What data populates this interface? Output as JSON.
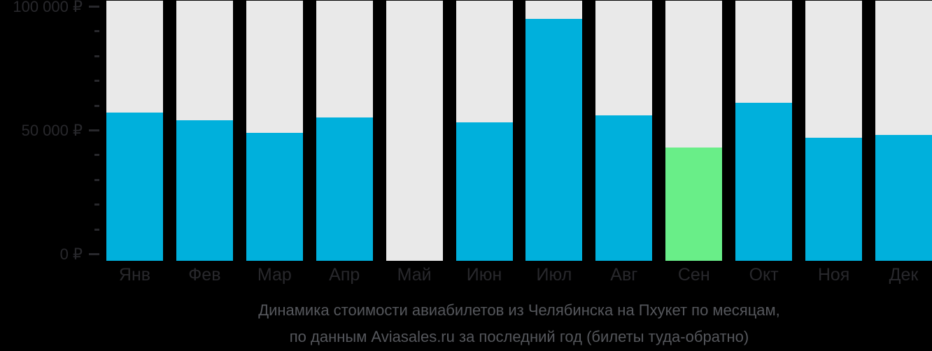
{
  "chart_data": {
    "type": "bar",
    "title": "Динамика стоимости авиабилетов из Челябинска на Пхукет по месяцам,",
    "subtitle": "по данным Aviasales.ru за последний год (билеты туда-обратно)",
    "categories": [
      "Янв",
      "Фев",
      "Мар",
      "Апр",
      "Май",
      "Июн",
      "Июл",
      "Авг",
      "Сен",
      "Окт",
      "Ноя",
      "Дек"
    ],
    "values": [
      57000,
      54000,
      49000,
      55000,
      null,
      53000,
      95000,
      56000,
      43000,
      61000,
      47000,
      48000
    ],
    "highlight_index": 8,
    "xlabel": "",
    "ylabel": "",
    "ylim": [
      0,
      100000
    ],
    "grid": false,
    "legend_position": "none",
    "y_ticks": [
      {
        "value": 100000,
        "label": "100 000 ₽"
      },
      {
        "value": 90000,
        "label": ""
      },
      {
        "value": 80000,
        "label": ""
      },
      {
        "value": 70000,
        "label": ""
      },
      {
        "value": 60000,
        "label": ""
      },
      {
        "value": 50000,
        "label": "50 000 ₽"
      },
      {
        "value": 40000,
        "label": ""
      },
      {
        "value": 30000,
        "label": ""
      },
      {
        "value": 20000,
        "label": ""
      },
      {
        "value": 10000,
        "label": ""
      },
      {
        "value": 0,
        "label": "0 ₽"
      }
    ],
    "colors": {
      "bar": "#00b0dc",
      "bar_highlight": "#69ee88",
      "column_background": "#e9e9e9",
      "axis_text": "#28282c",
      "caption_text": "#55575c",
      "page_background": "#000000"
    }
  }
}
